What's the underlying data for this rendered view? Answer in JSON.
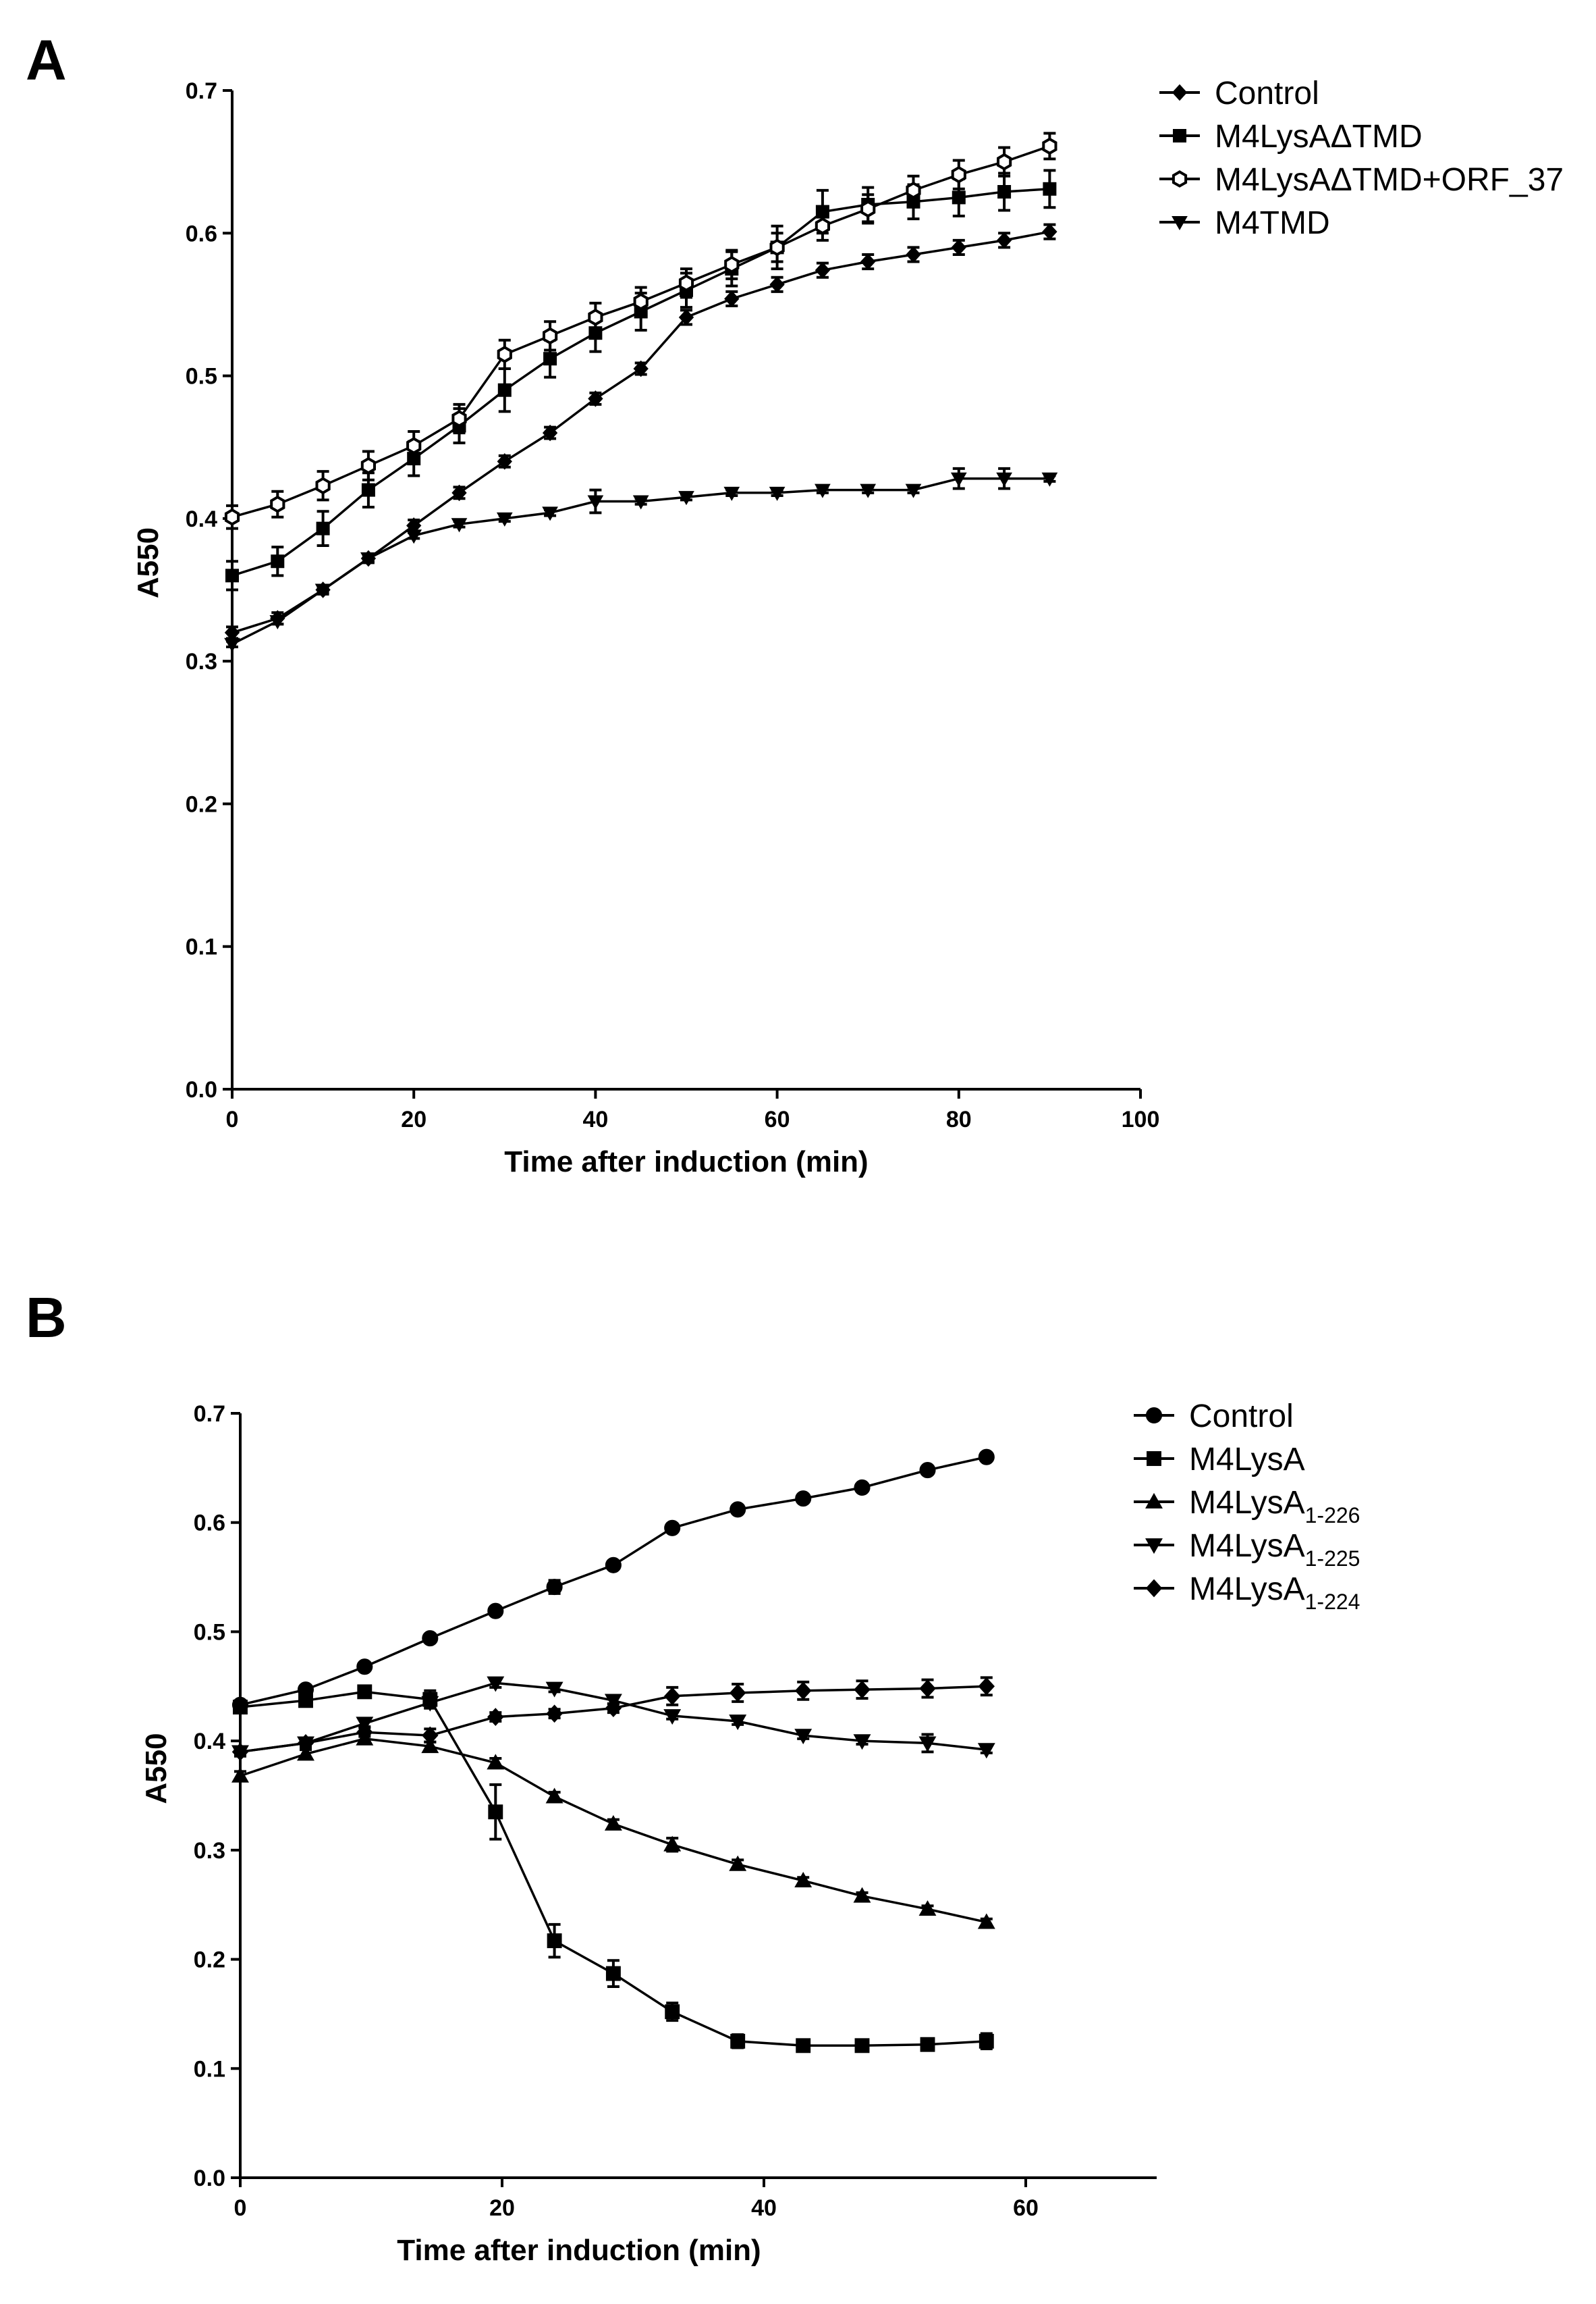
{
  "chart_data": [
    {
      "panel": "A",
      "type": "line",
      "xlabel": "Time after induction (min)",
      "ylabel": "A550",
      "xlim": [
        0,
        100
      ],
      "ylim": [
        0,
        0.7
      ],
      "xticks": [
        0,
        20,
        40,
        60,
        80,
        100
      ],
      "yticks": [
        0.0,
        0.1,
        0.2,
        0.3,
        0.4,
        0.5,
        0.6,
        0.7
      ],
      "legend_position": "top-right, outside",
      "x": [
        0,
        5,
        10,
        15,
        20,
        25,
        30,
        35,
        40,
        45,
        50,
        55,
        60,
        65,
        70,
        75,
        80,
        85,
        90
      ],
      "series": [
        {
          "name": "Control",
          "marker": "diamond",
          "values": [
            0.32,
            0.33,
            0.35,
            0.372,
            0.395,
            0.418,
            0.44,
            0.46,
            0.484,
            0.505,
            0.541,
            0.554,
            0.564,
            0.574,
            0.58,
            0.585,
            0.59,
            0.595,
            0.601
          ],
          "errors": [
            0.004,
            0.004,
            0.003,
            0.003,
            0.004,
            0.004,
            0.004,
            0.004,
            0.004,
            0.004,
            0.005,
            0.005,
            0.005,
            0.005,
            0.005,
            0.005,
            0.005,
            0.005,
            0.005
          ]
        },
        {
          "name": "M4LysAΔTMD",
          "marker": "square",
          "values": [
            0.36,
            0.37,
            0.393,
            0.42,
            0.442,
            0.465,
            0.49,
            0.512,
            0.53,
            0.545,
            0.56,
            0.575,
            0.59,
            0.615,
            0.62,
            0.622,
            0.625,
            0.629,
            0.631
          ],
          "errors": [
            0.01,
            0.01,
            0.012,
            0.012,
            0.012,
            0.012,
            0.015,
            0.013,
            0.013,
            0.013,
            0.012,
            0.012,
            0.015,
            0.015,
            0.012,
            0.012,
            0.013,
            0.013,
            0.013
          ]
        },
        {
          "name": "M4LysAΔTMD+ORF_37",
          "marker": "open-hex",
          "values": [
            0.401,
            0.41,
            0.423,
            0.437,
            0.451,
            0.47,
            0.515,
            0.528,
            0.541,
            0.552,
            0.565,
            0.578,
            0.59,
            0.605,
            0.617,
            0.63,
            0.641,
            0.65,
            0.661
          ],
          "errors": [
            0.008,
            0.009,
            0.01,
            0.01,
            0.01,
            0.01,
            0.01,
            0.01,
            0.01,
            0.01,
            0.01,
            0.01,
            0.01,
            0.01,
            0.01,
            0.01,
            0.01,
            0.01,
            0.009
          ]
        },
        {
          "name": "M4TMD",
          "marker": "triangle-down",
          "values": [
            0.312,
            0.328,
            0.35,
            0.372,
            0.388,
            0.396,
            0.4,
            0.404,
            0.412,
            0.412,
            0.415,
            0.418,
            0.418,
            0.42,
            0.42,
            0.42,
            0.428,
            0.428,
            0.428
          ],
          "errors": [
            0.002,
            0.002,
            0.002,
            0.002,
            0.002,
            0.002,
            0.002,
            0.002,
            0.008,
            0.002,
            0.002,
            0.002,
            0.002,
            0.002,
            0.002,
            0.002,
            0.007,
            0.007,
            0.002
          ]
        }
      ]
    },
    {
      "panel": "B",
      "type": "line",
      "xlabel": "Time after induction (min)",
      "ylabel": "A550",
      "xlim": [
        0,
        70
      ],
      "ylim": [
        0,
        0.7
      ],
      "xticks": [
        0,
        20,
        40,
        60
      ],
      "yticks": [
        0.0,
        0.1,
        0.2,
        0.3,
        0.4,
        0.5,
        0.6,
        0.7
      ],
      "legend_position": "top-right, outside",
      "x": [
        0,
        5,
        9.5,
        14.5,
        19.5,
        24,
        28.5,
        33,
        38,
        43,
        47.5,
        52.5,
        57
      ],
      "series": [
        {
          "name": "Control",
          "name_sub": "",
          "marker": "circle",
          "values": [
            0.433,
            0.447,
            0.468,
            0.494,
            0.519,
            0.541,
            0.561,
            0.595,
            0.612,
            0.622,
            0.632,
            0.648,
            0.66
          ],
          "errors": [
            0.003,
            0.003,
            0.003,
            0.003,
            0.003,
            0.006,
            0.003,
            0.003,
            0.003,
            0.003,
            0.003,
            0.003,
            0.003
          ]
        },
        {
          "name": "M4LysA",
          "name_sub": "",
          "marker": "square",
          "values": [
            0.431,
            0.437,
            0.445,
            0.438,
            0.335,
            0.217,
            0.187,
            0.152,
            0.125,
            0.121,
            0.121,
            0.122,
            0.125
          ],
          "errors": [
            0.004,
            0.004,
            0.005,
            0.008,
            0.025,
            0.015,
            0.012,
            0.008,
            0.006,
            0.003,
            0.003,
            0.003,
            0.007
          ]
        },
        {
          "name": "M4LysA",
          "name_sub": "1-226",
          "marker": "triangle-up",
          "values": [
            0.368,
            0.388,
            0.402,
            0.395,
            0.38,
            0.349,
            0.324,
            0.305,
            0.287,
            0.272,
            0.258,
            0.246,
            0.234
          ],
          "errors": [
            0.004,
            0.004,
            0.004,
            0.004,
            0.004,
            0.004,
            0.004,
            0.006,
            0.004,
            0.003,
            0.003,
            0.003,
            0.003
          ]
        },
        {
          "name": "M4LysA",
          "name_sub": "1-225",
          "marker": "triangle-down",
          "values": [
            0.39,
            0.398,
            0.416,
            0.435,
            0.453,
            0.448,
            0.437,
            0.423,
            0.418,
            0.405,
            0.4,
            0.398,
            0.392
          ],
          "errors": [
            0.003,
            0.003,
            0.003,
            0.005,
            0.004,
            0.003,
            0.003,
            0.003,
            0.003,
            0.003,
            0.003,
            0.008,
            0.003
          ]
        },
        {
          "name": "M4LysA",
          "name_sub": "1-224",
          "marker": "diamond",
          "values": [
            0.39,
            0.398,
            0.408,
            0.405,
            0.422,
            0.425,
            0.43,
            0.441,
            0.444,
            0.446,
            0.447,
            0.448,
            0.45
          ],
          "errors": [
            0.004,
            0.004,
            0.004,
            0.006,
            0.004,
            0.004,
            0.004,
            0.008,
            0.008,
            0.008,
            0.008,
            0.008,
            0.008
          ]
        }
      ]
    }
  ]
}
